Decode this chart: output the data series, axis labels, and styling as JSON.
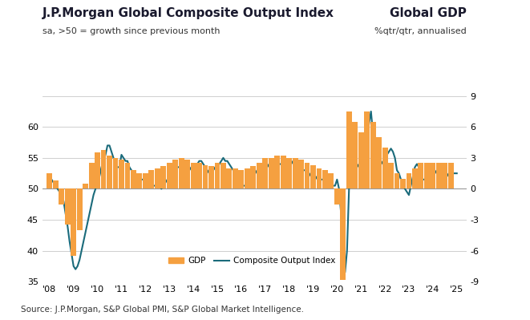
{
  "title_left": "J.P.Morgan Global Composite Output Index",
  "subtitle_left": "sa, >50 = growth since previous month",
  "title_right": "Global GDP",
  "subtitle_right": "%qtr/qtr, annualised",
  "source": "Source: J.P.Morgan, S&P Global PMI, S&P Global Market Intelligence.",
  "xlim_start": 2007.7,
  "xlim_end": 2025.4,
  "ylim_left": [
    35,
    65
  ],
  "ylim_right": [
    -9,
    9
  ],
  "yticks_left": [
    35,
    40,
    45,
    50,
    55,
    60,
    65
  ],
  "yticks_left_labels": [
    "35",
    "40",
    "45",
    "50",
    "55",
    "60",
    ""
  ],
  "yticks_right": [
    -9,
    -6,
    -3,
    0,
    3,
    6,
    9
  ],
  "xtick_labels": [
    "'08",
    "'09",
    "'10",
    "'11",
    "'12",
    "'13",
    "'14",
    "'15",
    "'16",
    "'17",
    "'18",
    "'19",
    "'20",
    "'21",
    "'22",
    "'23",
    "'24",
    "'25"
  ],
  "xtick_positions": [
    2008,
    2009,
    2010,
    2011,
    2012,
    2013,
    2014,
    2015,
    2016,
    2017,
    2018,
    2019,
    2020,
    2021,
    2022,
    2023,
    2024,
    2025
  ],
  "reference_line": 50,
  "bar_color": "#F5A040",
  "line_color": "#1B6B7B",
  "line_width": 1.5,
  "bg_color": "#FFFFFF",
  "legend_gdp": "GDP",
  "legend_line": "Composite Output Index",
  "gdp_data": {
    "dates": [
      2008.0,
      2008.25,
      2008.5,
      2008.75,
      2009.0,
      2009.25,
      2009.5,
      2009.75,
      2010.0,
      2010.25,
      2010.5,
      2010.75,
      2011.0,
      2011.25,
      2011.5,
      2011.75,
      2012.0,
      2012.25,
      2012.5,
      2012.75,
      2013.0,
      2013.25,
      2013.5,
      2013.75,
      2014.0,
      2014.25,
      2014.5,
      2014.75,
      2015.0,
      2015.25,
      2015.5,
      2015.75,
      2016.0,
      2016.25,
      2016.5,
      2016.75,
      2017.0,
      2017.25,
      2017.5,
      2017.75,
      2018.0,
      2018.25,
      2018.5,
      2018.75,
      2019.0,
      2019.25,
      2019.5,
      2019.75,
      2020.0,
      2020.25,
      2020.5,
      2020.75,
      2021.0,
      2021.25,
      2021.5,
      2021.75,
      2022.0,
      2022.25,
      2022.5,
      2022.75,
      2023.0,
      2023.25,
      2023.5,
      2023.75,
      2024.0,
      2024.25,
      2024.5,
      2024.75
    ],
    "values": [
      1.5,
      0.8,
      -1.5,
      -3.5,
      -6.5,
      -4.0,
      0.5,
      2.5,
      3.5,
      3.8,
      3.2,
      3.0,
      2.8,
      2.5,
      1.8,
      1.5,
      1.5,
      1.8,
      2.0,
      2.2,
      2.5,
      2.8,
      3.0,
      2.8,
      2.5,
      2.5,
      2.3,
      2.2,
      2.5,
      2.5,
      2.0,
      2.0,
      1.8,
      2.0,
      2.2,
      2.5,
      3.0,
      3.0,
      3.2,
      3.2,
      3.0,
      3.0,
      2.8,
      2.5,
      2.3,
      2.0,
      1.8,
      1.5,
      -1.5,
      -8.8,
      7.5,
      6.5,
      5.5,
      7.5,
      6.5,
      5.0,
      4.0,
      2.5,
      1.5,
      1.0,
      1.5,
      2.0,
      2.5,
      2.5,
      2.5,
      2.5,
      2.5,
      2.5
    ]
  },
  "pmi_data": {
    "dates": [
      2008.0,
      2008.083,
      2008.167,
      2008.25,
      2008.333,
      2008.417,
      2008.5,
      2008.583,
      2008.667,
      2008.75,
      2008.833,
      2008.917,
      2009.0,
      2009.083,
      2009.167,
      2009.25,
      2009.333,
      2009.417,
      2009.5,
      2009.583,
      2009.667,
      2009.75,
      2009.833,
      2009.917,
      2010.0,
      2010.083,
      2010.167,
      2010.25,
      2010.333,
      2010.417,
      2010.5,
      2010.583,
      2010.667,
      2010.75,
      2010.833,
      2010.917,
      2011.0,
      2011.083,
      2011.167,
      2011.25,
      2011.333,
      2011.417,
      2011.5,
      2011.583,
      2011.667,
      2011.75,
      2011.833,
      2011.917,
      2012.0,
      2012.083,
      2012.167,
      2012.25,
      2012.333,
      2012.417,
      2012.5,
      2012.583,
      2012.667,
      2012.75,
      2012.833,
      2012.917,
      2013.0,
      2013.083,
      2013.167,
      2013.25,
      2013.333,
      2013.417,
      2013.5,
      2013.583,
      2013.667,
      2013.75,
      2013.833,
      2013.917,
      2014.0,
      2014.083,
      2014.167,
      2014.25,
      2014.333,
      2014.417,
      2014.5,
      2014.583,
      2014.667,
      2014.75,
      2014.833,
      2014.917,
      2015.0,
      2015.083,
      2015.167,
      2015.25,
      2015.333,
      2015.417,
      2015.5,
      2015.583,
      2015.667,
      2015.75,
      2015.833,
      2015.917,
      2016.0,
      2016.083,
      2016.167,
      2016.25,
      2016.333,
      2016.417,
      2016.5,
      2016.583,
      2016.667,
      2016.75,
      2016.833,
      2016.917,
      2017.0,
      2017.083,
      2017.167,
      2017.25,
      2017.333,
      2017.417,
      2017.5,
      2017.583,
      2017.667,
      2017.75,
      2017.833,
      2017.917,
      2018.0,
      2018.083,
      2018.167,
      2018.25,
      2018.333,
      2018.417,
      2018.5,
      2018.583,
      2018.667,
      2018.75,
      2018.833,
      2018.917,
      2019.0,
      2019.083,
      2019.167,
      2019.25,
      2019.333,
      2019.417,
      2019.5,
      2019.583,
      2019.667,
      2019.75,
      2019.833,
      2019.917,
      2020.0,
      2020.083,
      2020.167,
      2020.25,
      2020.333,
      2020.417,
      2020.5,
      2020.583,
      2020.667,
      2020.75,
      2020.833,
      2020.917,
      2021.0,
      2021.083,
      2021.167,
      2021.25,
      2021.333,
      2021.417,
      2021.5,
      2021.583,
      2021.667,
      2021.75,
      2021.833,
      2021.917,
      2022.0,
      2022.083,
      2022.167,
      2022.25,
      2022.333,
      2022.417,
      2022.5,
      2022.583,
      2022.667,
      2022.75,
      2022.833,
      2022.917,
      2023.0,
      2023.083,
      2023.167,
      2023.25,
      2023.333,
      2023.417,
      2023.5,
      2023.583,
      2023.667,
      2023.75,
      2023.833,
      2023.917,
      2024.0,
      2024.083,
      2024.167,
      2024.25,
      2024.333,
      2024.417,
      2024.5,
      2024.583,
      2024.667,
      2024.75,
      2024.833,
      2024.917,
      2025.0
    ],
    "values": [
      52.0,
      51.5,
      51.0,
      50.5,
      50.0,
      49.5,
      49.0,
      48.0,
      46.0,
      44.0,
      41.5,
      39.5,
      37.5,
      37.0,
      37.5,
      38.5,
      40.0,
      41.5,
      43.0,
      44.5,
      46.0,
      47.5,
      49.0,
      50.0,
      51.5,
      52.0,
      53.5,
      54.5,
      55.5,
      57.0,
      57.0,
      56.0,
      55.0,
      54.0,
      53.5,
      53.5,
      55.5,
      55.0,
      54.5,
      54.5,
      53.5,
      53.0,
      52.5,
      52.0,
      51.5,
      51.0,
      51.5,
      51.5,
      52.0,
      51.5,
      51.0,
      51.0,
      50.5,
      50.5,
      51.0,
      50.5,
      50.0,
      50.5,
      51.0,
      51.5,
      52.0,
      52.5,
      53.0,
      53.0,
      53.5,
      53.5,
      53.0,
      52.5,
      52.5,
      52.5,
      53.0,
      53.5,
      53.5,
      53.5,
      54.0,
      54.5,
      54.5,
      54.0,
      53.5,
      53.0,
      52.5,
      52.5,
      53.0,
      53.5,
      53.5,
      54.0,
      54.5,
      55.0,
      54.5,
      54.5,
      54.0,
      53.5,
      53.0,
      52.5,
      52.0,
      52.5,
      51.0,
      50.5,
      50.5,
      51.0,
      51.5,
      51.5,
      52.0,
      52.5,
      53.0,
      53.5,
      53.5,
      54.0,
      53.5,
      53.5,
      54.0,
      54.5,
      54.5,
      55.0,
      54.5,
      54.0,
      54.0,
      54.0,
      54.0,
      54.0,
      54.0,
      54.0,
      54.5,
      54.5,
      54.0,
      53.5,
      53.5,
      53.0,
      53.0,
      53.0,
      52.5,
      52.0,
      51.5,
      51.5,
      52.0,
      52.0,
      51.5,
      51.5,
      51.0,
      51.0,
      51.0,
      50.5,
      50.5,
      50.5,
      51.5,
      50.0,
      46.0,
      40.5,
      36.5,
      40.0,
      50.0,
      52.0,
      52.5,
      53.0,
      53.5,
      54.0,
      52.5,
      53.5,
      56.5,
      58.0,
      60.5,
      62.5,
      59.0,
      58.0,
      55.5,
      55.0,
      54.5,
      54.0,
      55.0,
      55.5,
      56.0,
      56.5,
      56.0,
      55.0,
      53.0,
      52.5,
      51.5,
      50.5,
      50.0,
      49.5,
      49.0,
      50.5,
      52.0,
      53.5,
      54.0,
      53.5,
      52.5,
      51.5,
      51.5,
      51.5,
      52.0,
      52.0,
      52.5,
      52.5,
      53.0,
      52.8,
      52.5,
      52.5,
      52.0,
      52.0,
      52.5,
      52.5,
      52.5,
      52.5,
      52.5
    ]
  }
}
